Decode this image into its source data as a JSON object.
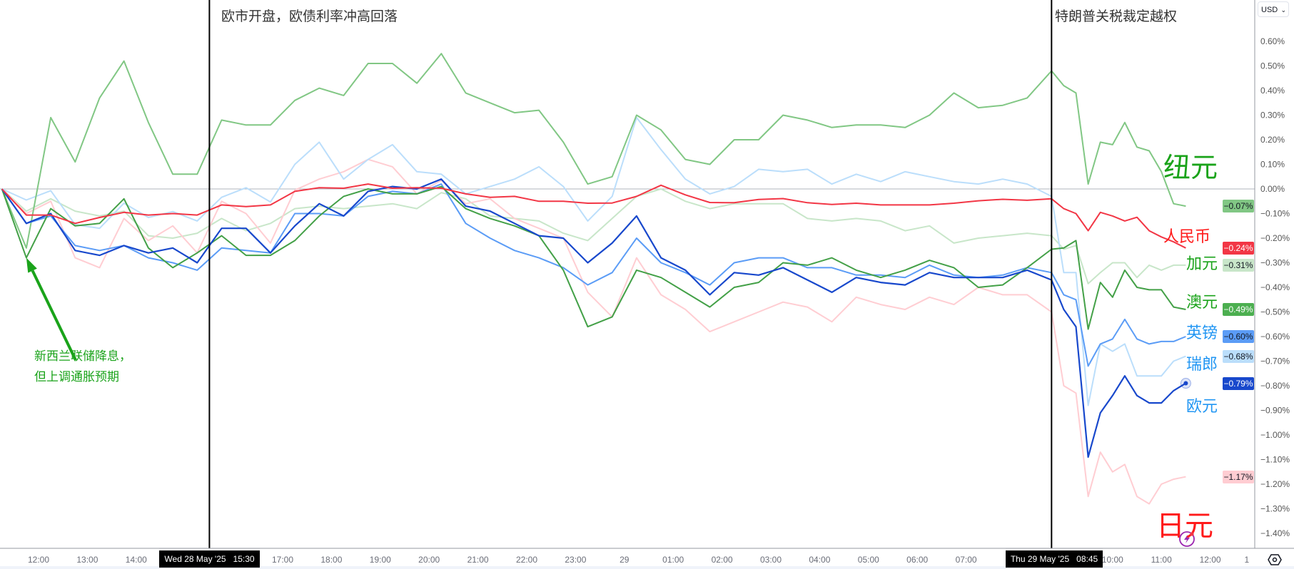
{
  "chart_data": {
    "type": "line",
    "currency_selector": "USD",
    "ylim": [
      -1.45,
      0.68
    ],
    "y_unit": "%",
    "y_ticks": [
      0.6,
      0.5,
      0.4,
      0.3,
      0.2,
      0.1,
      0.0,
      -0.1,
      -0.2,
      -0.3,
      -0.4,
      -0.5,
      -0.6,
      -0.7,
      -0.8,
      -0.9,
      -1.0,
      -1.1,
      -1.2,
      -1.3,
      -1.4
    ],
    "y_tick_labels": [
      "0.60%",
      "0.50%",
      "0.40%",
      "0.30%",
      "0.20%",
      "0.10%",
      "0.00%",
      "−0.10%",
      "−0.20%",
      "−0.30%",
      "−0.40%",
      "−0.50%",
      "−0.60%",
      "−0.70%",
      "−0.80%",
      "−0.90%",
      "−1.00%",
      "−1.10%",
      "−1.20%",
      "−1.30%",
      "−1.40%"
    ],
    "x_ticks": [
      {
        "label": "12:00",
        "time": "2025-05-28T12:00"
      },
      {
        "label": "13:00",
        "time": "2025-05-28T13:00"
      },
      {
        "label": "14:00",
        "time": "2025-05-28T14:00"
      },
      {
        "label": "17:00",
        "time": "2025-05-28T17:00"
      },
      {
        "label": "18:00",
        "time": "2025-05-28T18:00"
      },
      {
        "label": "19:00",
        "time": "2025-05-28T19:00"
      },
      {
        "label": "20:00",
        "time": "2025-05-28T20:00"
      },
      {
        "label": "21:00",
        "time": "2025-05-28T21:00"
      },
      {
        "label": "22:00",
        "time": "2025-05-28T22:00"
      },
      {
        "label": "23:00",
        "time": "2025-05-28T23:00"
      },
      {
        "label": "29",
        "time": "2025-05-29T00:00"
      },
      {
        "label": "01:00",
        "time": "2025-05-29T01:00"
      },
      {
        "label": "02:00",
        "time": "2025-05-29T02:00"
      },
      {
        "label": "03:00",
        "time": "2025-05-29T03:00"
      },
      {
        "label": "04:00",
        "time": "2025-05-29T04:00"
      },
      {
        "label": "05:00",
        "time": "2025-05-29T05:00"
      },
      {
        "label": "06:00",
        "time": "2025-05-29T06:00"
      },
      {
        "label": "07:00",
        "time": "2025-05-29T07:00"
      },
      {
        "label": "10:00",
        "time": "2025-05-29T10:00"
      },
      {
        "label": "11:00",
        "time": "2025-05-29T11:00"
      },
      {
        "label": "12:00",
        "time": "2025-05-29T12:00"
      },
      {
        "label": "1",
        "time": "2025-05-29T12:45"
      }
    ],
    "events": [
      {
        "time": "2025-05-28T15:30",
        "date_label": "Wed 28 May '25   15:30",
        "title": "欧市开盘，欧债利率冲高回落"
      },
      {
        "time": "2025-05-29T08:45",
        "date_label": "Thu 29 May '25   08:45",
        "title": "特朗普关税裁定越权"
      }
    ],
    "annotation": {
      "lines": [
        "新西兰联储降息，",
        "但上调通胀预期"
      ],
      "arrow_target_time": "2025-05-28T11:45",
      "arrow_target_value": -0.28,
      "color": "#1aa31a"
    },
    "x": [
      "2025-05-28T11:15",
      "2025-05-28T11:45",
      "2025-05-28T12:15",
      "2025-05-28T12:45",
      "2025-05-28T13:15",
      "2025-05-28T13:45",
      "2025-05-28T14:15",
      "2025-05-28T14:45",
      "2025-05-28T15:15",
      "2025-05-28T15:45",
      "2025-05-28T16:15",
      "2025-05-28T16:45",
      "2025-05-28T17:15",
      "2025-05-28T17:45",
      "2025-05-28T18:15",
      "2025-05-28T18:45",
      "2025-05-28T19:15",
      "2025-05-28T19:45",
      "2025-05-28T20:15",
      "2025-05-28T20:45",
      "2025-05-28T21:15",
      "2025-05-28T21:45",
      "2025-05-28T22:15",
      "2025-05-28T22:45",
      "2025-05-28T23:15",
      "2025-05-28T23:45",
      "2025-05-29T00:15",
      "2025-05-29T00:45",
      "2025-05-29T01:15",
      "2025-05-29T01:45",
      "2025-05-29T02:15",
      "2025-05-29T02:45",
      "2025-05-29T03:15",
      "2025-05-29T03:45",
      "2025-05-29T04:15",
      "2025-05-29T04:45",
      "2025-05-29T05:15",
      "2025-05-29T05:45",
      "2025-05-29T06:15",
      "2025-05-29T06:45",
      "2025-05-29T07:15",
      "2025-05-29T07:45",
      "2025-05-29T08:15",
      "2025-05-29T08:45",
      "2025-05-29T09:00",
      "2025-05-29T09:15",
      "2025-05-29T09:30",
      "2025-05-29T09:45",
      "2025-05-29T10:00",
      "2025-05-29T10:15",
      "2025-05-29T10:30",
      "2025-05-29T10:45",
      "2025-05-29T11:00",
      "2025-05-29T11:15",
      "2025-05-29T11:30"
    ],
    "series": [
      {
        "name": "纽元",
        "color": "#81c784",
        "label_color": "#1aa31a",
        "last": "−0.07%",
        "badge_text": "#131722",
        "width": 2,
        "values": [
          0,
          -0.24,
          0.29,
          0.11,
          0.37,
          0.52,
          0.27,
          0.06,
          0.06,
          0.28,
          0.26,
          0.26,
          0.36,
          0.41,
          0.38,
          0.51,
          0.51,
          0.43,
          0.55,
          0.39,
          0.35,
          0.31,
          0.32,
          0.19,
          0.02,
          0.05,
          0.3,
          0.24,
          0.12,
          0.1,
          0.2,
          0.2,
          0.3,
          0.28,
          0.25,
          0.26,
          0.26,
          0.25,
          0.3,
          0.39,
          0.33,
          0.34,
          0.37,
          0.48,
          0.42,
          0.39,
          0.02,
          0.19,
          0.18,
          0.27,
          0.17,
          0.155,
          0.07,
          -0.06,
          -0.07
        ]
      },
      {
        "name": "人民币",
        "color": "#f23645",
        "label_color": "#ff1a1a",
        "last": "−0.24%",
        "badge_text": "#ffffff",
        "width": 2,
        "values": [
          0,
          -0.106,
          -0.106,
          -0.14,
          -0.116,
          -0.095,
          -0.106,
          -0.1,
          -0.106,
          -0.065,
          -0.072,
          -0.065,
          -0.01,
          0.005,
          0.003,
          0.02,
          0.003,
          0.005,
          0.003,
          -0.02,
          -0.034,
          -0.03,
          -0.05,
          -0.05,
          -0.058,
          -0.057,
          -0.03,
          0.015,
          -0.024,
          -0.055,
          -0.056,
          -0.043,
          -0.039,
          -0.056,
          -0.063,
          -0.058,
          -0.065,
          -0.065,
          -0.065,
          -0.058,
          -0.048,
          -0.042,
          -0.046,
          -0.04,
          -0.08,
          -0.1,
          -0.17,
          -0.095,
          -0.11,
          -0.13,
          -0.115,
          -0.17,
          -0.195,
          -0.215,
          -0.24
        ]
      },
      {
        "name": "加元",
        "color": "#c8e6c9",
        "label_color": "#1aa31a",
        "last": "−0.31%",
        "badge_text": "#131722",
        "width": 2,
        "values": [
          0,
          -0.09,
          -0.04,
          -0.09,
          -0.11,
          -0.09,
          -0.19,
          -0.2,
          -0.18,
          -0.12,
          -0.17,
          -0.14,
          -0.08,
          -0.07,
          -0.08,
          -0.07,
          -0.06,
          -0.08,
          -0.015,
          -0.04,
          -0.11,
          -0.12,
          -0.13,
          -0.18,
          -0.21,
          -0.12,
          -0.03,
          0,
          -0.05,
          -0.08,
          -0.06,
          -0.06,
          -0.06,
          -0.12,
          -0.13,
          -0.12,
          -0.13,
          -0.17,
          -0.15,
          -0.22,
          -0.2,
          -0.19,
          -0.18,
          -0.19,
          -0.245,
          -0.23,
          -0.385,
          -0.34,
          -0.3,
          -0.3,
          -0.36,
          -0.31,
          -0.33,
          -0.31,
          -0.31
        ]
      },
      {
        "name": "澳元",
        "color": "#43a047",
        "label_color": "#1aa31a",
        "last": "−0.49%",
        "badge_text": "#ffffff",
        "badge_color": "#4caf50",
        "width": 2,
        "values": [
          0,
          -0.28,
          -0.08,
          -0.15,
          -0.14,
          -0.04,
          -0.24,
          -0.32,
          -0.26,
          -0.19,
          -0.27,
          -0.27,
          -0.21,
          -0.11,
          -0.03,
          0.0,
          -0.02,
          -0.02,
          0.01,
          -0.08,
          -0.12,
          -0.15,
          -0.19,
          -0.33,
          -0.56,
          -0.52,
          -0.33,
          -0.36,
          -0.42,
          -0.48,
          -0.4,
          -0.38,
          -0.3,
          -0.31,
          -0.28,
          -0.33,
          -0.36,
          -0.33,
          -0.29,
          -0.32,
          -0.4,
          -0.39,
          -0.32,
          -0.245,
          -0.24,
          -0.21,
          -0.57,
          -0.38,
          -0.44,
          -0.33,
          -0.4,
          -0.41,
          -0.41,
          -0.48,
          -0.49
        ]
      },
      {
        "name": "英镑",
        "color": "#5b9cf6",
        "label_color": "#2196f3",
        "last": "−0.60%",
        "badge_text": "#131722",
        "width": 2,
        "values": [
          0,
          -0.14,
          -0.11,
          -0.23,
          -0.25,
          -0.23,
          -0.28,
          -0.3,
          -0.33,
          -0.24,
          -0.25,
          -0.26,
          -0.1,
          -0.1,
          -0.11,
          -0.03,
          -0.01,
          -0.02,
          0.02,
          -0.14,
          -0.2,
          -0.25,
          -0.28,
          -0.32,
          -0.39,
          -0.34,
          -0.2,
          -0.3,
          -0.34,
          -0.39,
          -0.3,
          -0.28,
          -0.28,
          -0.32,
          -0.32,
          -0.35,
          -0.35,
          -0.36,
          -0.31,
          -0.35,
          -0.36,
          -0.35,
          -0.32,
          -0.34,
          -0.43,
          -0.45,
          -0.72,
          -0.63,
          -0.61,
          -0.53,
          -0.61,
          -0.63,
          -0.62,
          -0.62,
          -0.6
        ]
      },
      {
        "name": "瑞郎",
        "color": "#bbdefb",
        "label_color": "#2196f3",
        "last": "−0.68%",
        "badge_text": "#131722",
        "width": 2,
        "values": [
          0,
          -0.045,
          -0.007,
          -0.145,
          -0.16,
          -0.058,
          -0.116,
          -0.092,
          -0.13,
          -0.034,
          0.005,
          -0.053,
          0.1,
          0.19,
          0.04,
          0.12,
          0.18,
          0.07,
          0.06,
          -0.02,
          0.01,
          0.04,
          0.09,
          0.01,
          -0.13,
          -0.03,
          0.29,
          0.16,
          0.04,
          -0.02,
          0.01,
          0.08,
          0.07,
          0.08,
          0.02,
          0.06,
          0.03,
          0.07,
          0.05,
          0.03,
          0.02,
          0.04,
          0.02,
          -0.03,
          -0.34,
          -0.34,
          -0.88,
          -0.63,
          -0.66,
          -0.63,
          -0.76,
          -0.76,
          -0.76,
          -0.7,
          -0.68
        ]
      },
      {
        "name": "欧元",
        "color": "#1848cc",
        "label_color": "#2196f3",
        "last": "−0.79%",
        "badge_text": "#ffffff",
        "width": 2.2,
        "values": [
          0,
          -0.14,
          -0.1,
          -0.25,
          -0.27,
          -0.23,
          -0.26,
          -0.24,
          -0.3,
          -0.16,
          -0.16,
          -0.26,
          -0.15,
          -0.06,
          -0.11,
          -0.01,
          0.01,
          0,
          0.04,
          -0.07,
          -0.09,
          -0.14,
          -0.19,
          -0.2,
          -0.3,
          -0.22,
          -0.11,
          -0.28,
          -0.33,
          -0.43,
          -0.34,
          -0.35,
          -0.32,
          -0.37,
          -0.42,
          -0.36,
          -0.38,
          -0.39,
          -0.34,
          -0.36,
          -0.36,
          -0.36,
          -0.33,
          -0.37,
          -0.49,
          -0.56,
          -1.09,
          -0.91,
          -0.84,
          -0.76,
          -0.84,
          -0.87,
          -0.87,
          -0.82,
          -0.79
        ]
      },
      {
        "name": "日元",
        "color": "#ffcdd2",
        "label_color": "#ff1a1a",
        "last": "−1.17%",
        "badge_text": "#131722",
        "width": 2,
        "values": [
          0,
          -0.1,
          -0.05,
          -0.28,
          -0.32,
          -0.12,
          -0.21,
          -0.15,
          -0.26,
          -0.05,
          -0.1,
          -0.22,
          -0.005,
          0.04,
          0.07,
          0.12,
          0.09,
          -0.02,
          0.035,
          -0.06,
          -0.04,
          -0.12,
          -0.16,
          -0.2,
          -0.42,
          -0.52,
          -0.28,
          -0.43,
          -0.49,
          -0.58,
          -0.54,
          -0.5,
          -0.46,
          -0.48,
          -0.54,
          -0.44,
          -0.47,
          -0.49,
          -0.44,
          -0.47,
          -0.4,
          -0.43,
          -0.43,
          -0.5,
          -0.8,
          -0.83,
          -1.25,
          -1.07,
          -1.15,
          -1.12,
          -1.25,
          -1.28,
          -1.2,
          -1.18,
          -1.17
        ]
      }
    ]
  }
}
